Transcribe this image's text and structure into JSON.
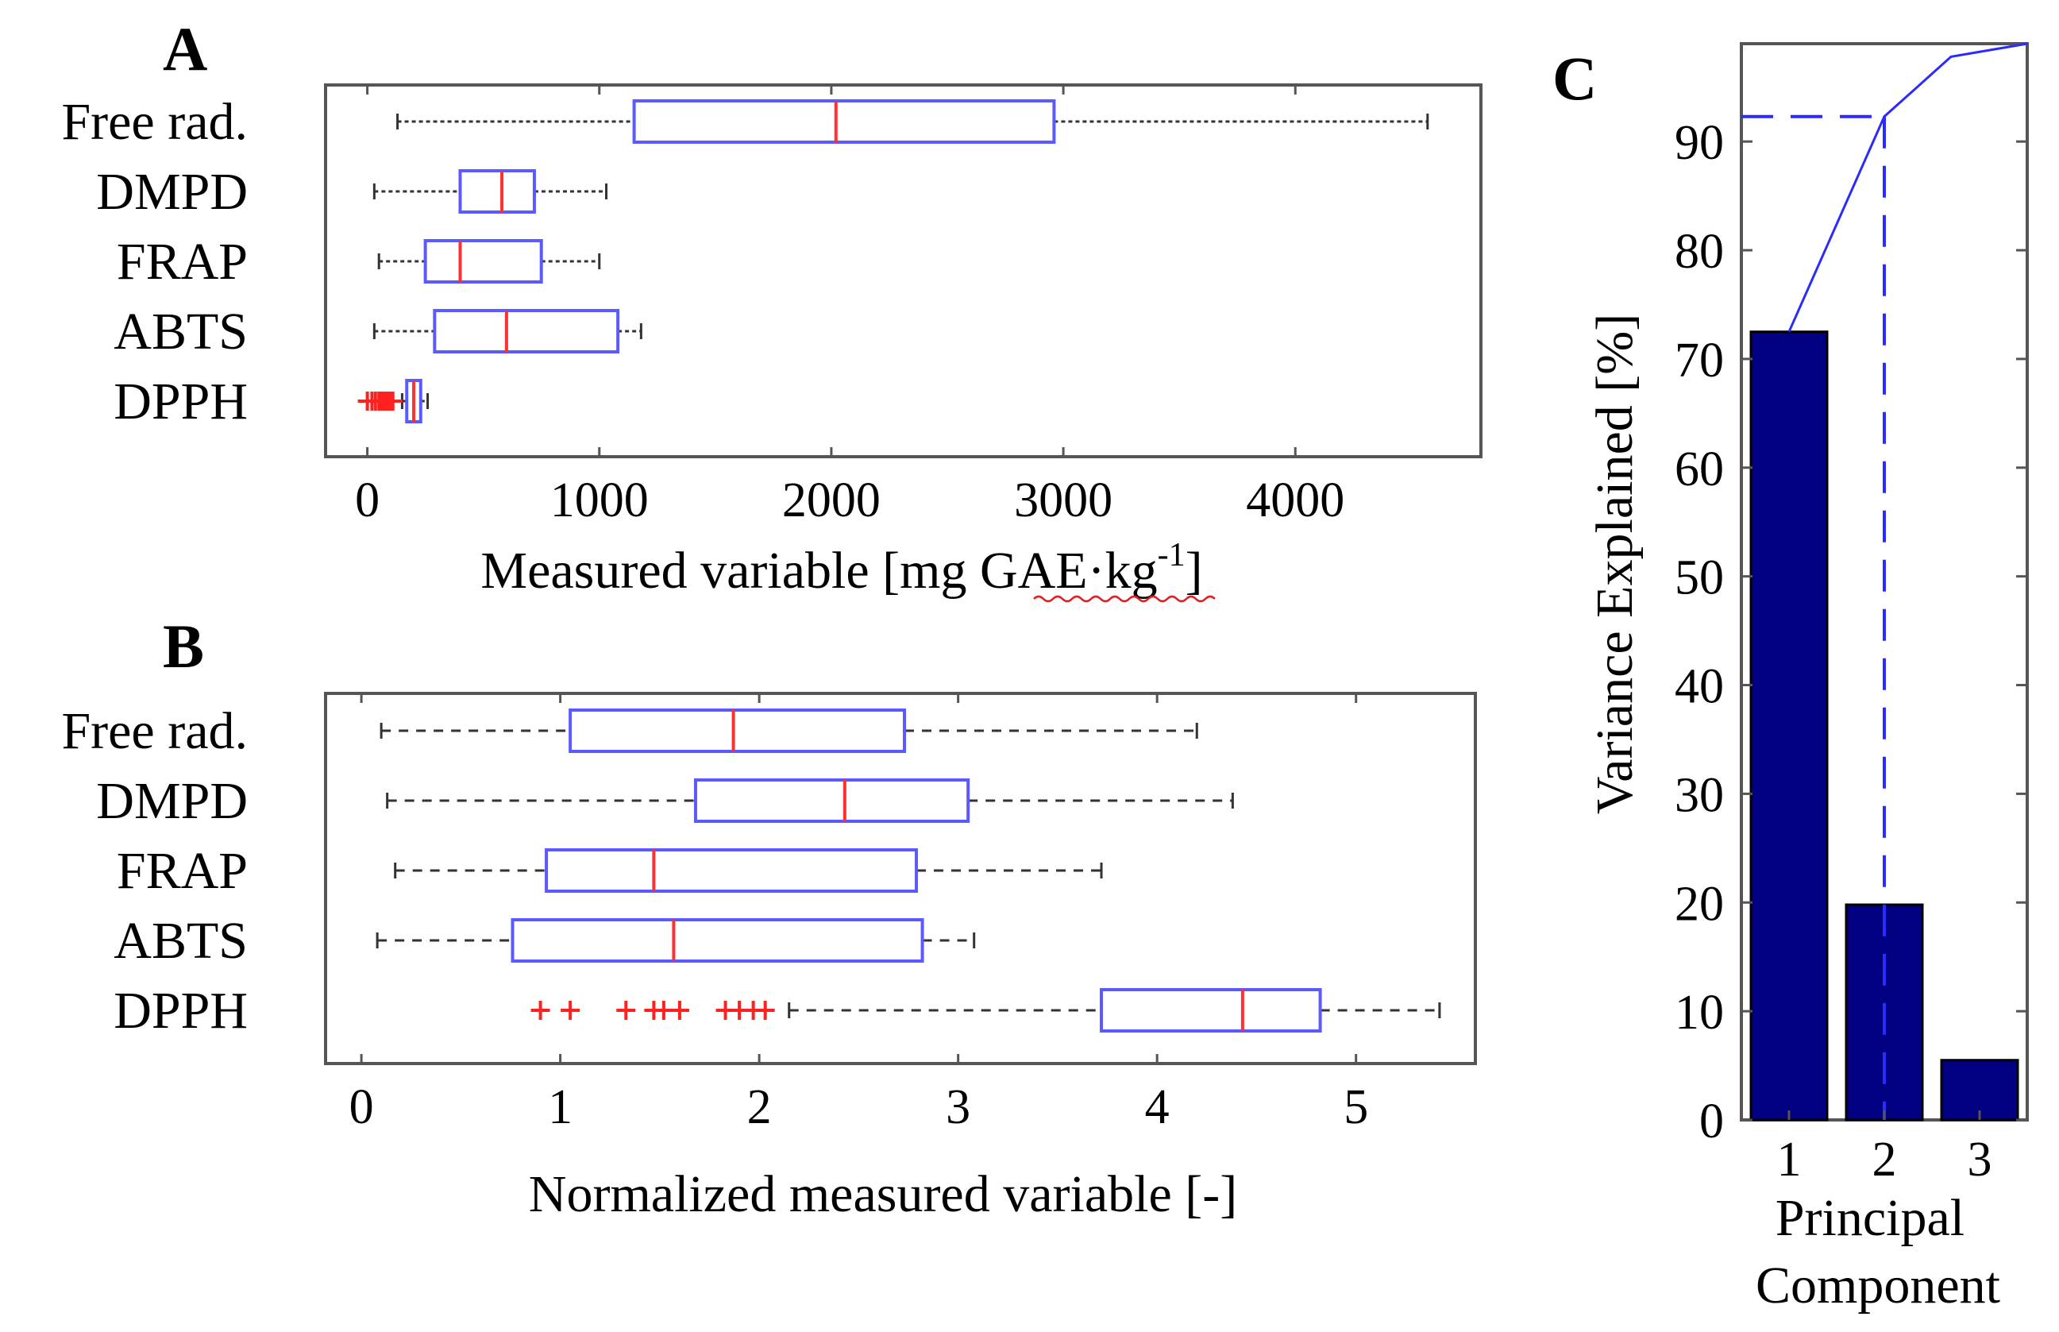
{
  "chart_data": [
    {
      "panel": "A",
      "type": "boxplot",
      "orientation": "horizontal",
      "xlabel": "Measured variable  [mg GAE·kg",
      "xlabel_sup": "-1",
      "xlabel_end": "]",
      "xlim": [
        -180,
        4800
      ],
      "xticks": [
        0,
        1000,
        2000,
        3000,
        4000
      ],
      "categories": [
        "Free rad.",
        "DMPD",
        "FRAP",
        "ABTS",
        "DPPH"
      ],
      "boxes": [
        {
          "name": "Free rad.",
          "whisker_low": 130,
          "q1": 1150,
          "median": 2020,
          "q3": 2960,
          "whisker_high": 4570,
          "outliers": []
        },
        {
          "name": "DMPD",
          "whisker_low": 30,
          "q1": 400,
          "median": 580,
          "q3": 720,
          "whisker_high": 1030,
          "outliers": []
        },
        {
          "name": "FRAP",
          "whisker_low": 50,
          "q1": 250,
          "median": 400,
          "q3": 750,
          "whisker_high": 1000,
          "outliers": []
        },
        {
          "name": "ABTS",
          "whisker_low": 30,
          "q1": 290,
          "median": 600,
          "q3": 1080,
          "whisker_high": 1180,
          "outliers": []
        },
        {
          "name": "DPPH",
          "whisker_low": 150,
          "q1": 170,
          "median": 200,
          "q3": 230,
          "whisker_high": 260,
          "outliers": [
            0,
            20,
            35,
            50,
            60,
            70,
            80,
            90,
            100,
            110
          ]
        }
      ],
      "colors": {
        "box": "#5a5aff",
        "median": "#ff3030",
        "whisker": "#333333",
        "outlier": "#ff2020"
      }
    },
    {
      "panel": "B",
      "type": "boxplot",
      "orientation": "horizontal",
      "xlabel": "Normalized measured variable  [-]",
      "xlim": [
        -0.18,
        5.6
      ],
      "xticks": [
        0,
        1,
        2,
        3,
        4,
        5
      ],
      "categories": [
        "Free rad.",
        "DMPD",
        "FRAP",
        "ABTS",
        "DPPH"
      ],
      "boxes": [
        {
          "name": "Free rad.",
          "whisker_low": 0.1,
          "q1": 1.05,
          "median": 1.87,
          "q3": 2.73,
          "whisker_high": 4.2,
          "outliers": []
        },
        {
          "name": "DMPD",
          "whisker_low": 0.13,
          "q1": 1.68,
          "median": 2.43,
          "q3": 3.05,
          "whisker_high": 4.38,
          "outliers": []
        },
        {
          "name": "FRAP",
          "whisker_low": 0.17,
          "q1": 0.93,
          "median": 1.47,
          "q3": 2.79,
          "whisker_high": 3.72,
          "outliers": []
        },
        {
          "name": "ABTS",
          "whisker_low": 0.08,
          "q1": 0.76,
          "median": 1.57,
          "q3": 2.82,
          "whisker_high": 3.08,
          "outliers": []
        },
        {
          "name": "DPPH",
          "whisker_low": 2.15,
          "q1": 3.72,
          "median": 4.43,
          "q3": 4.82,
          "whisker_high": 5.42,
          "outliers": [
            0.9,
            1.05,
            1.33,
            1.47,
            1.52,
            1.6,
            1.83,
            1.9,
            1.97,
            2.03
          ]
        }
      ],
      "colors": {
        "box": "#5a5aff",
        "median": "#ff3030",
        "whisker": "#333333",
        "outlier": "#ff2020"
      }
    },
    {
      "panel": "C",
      "type": "bar",
      "categories": [
        "1",
        "2",
        "3"
      ],
      "values": [
        72.5,
        19.8,
        5.5
      ],
      "cumulative_line": [
        72.5,
        92.3,
        97.8,
        99.0
      ],
      "cumulative_x": [
        1,
        2,
        2.7,
        3.5
      ],
      "threshold": {
        "x": 2,
        "y": 92.3
      },
      "ylabel": "Variance Explained [%]",
      "xlabel_line1": "Principal",
      "xlabel_line2": "Component",
      "ylim": [
        0,
        99
      ],
      "yticks": [
        0,
        10,
        20,
        30,
        40,
        50,
        60,
        70,
        80,
        90
      ],
      "xlim": [
        0.5,
        3.5
      ],
      "colors": {
        "bar": "#000080",
        "line": "#2b2bff"
      }
    }
  ]
}
